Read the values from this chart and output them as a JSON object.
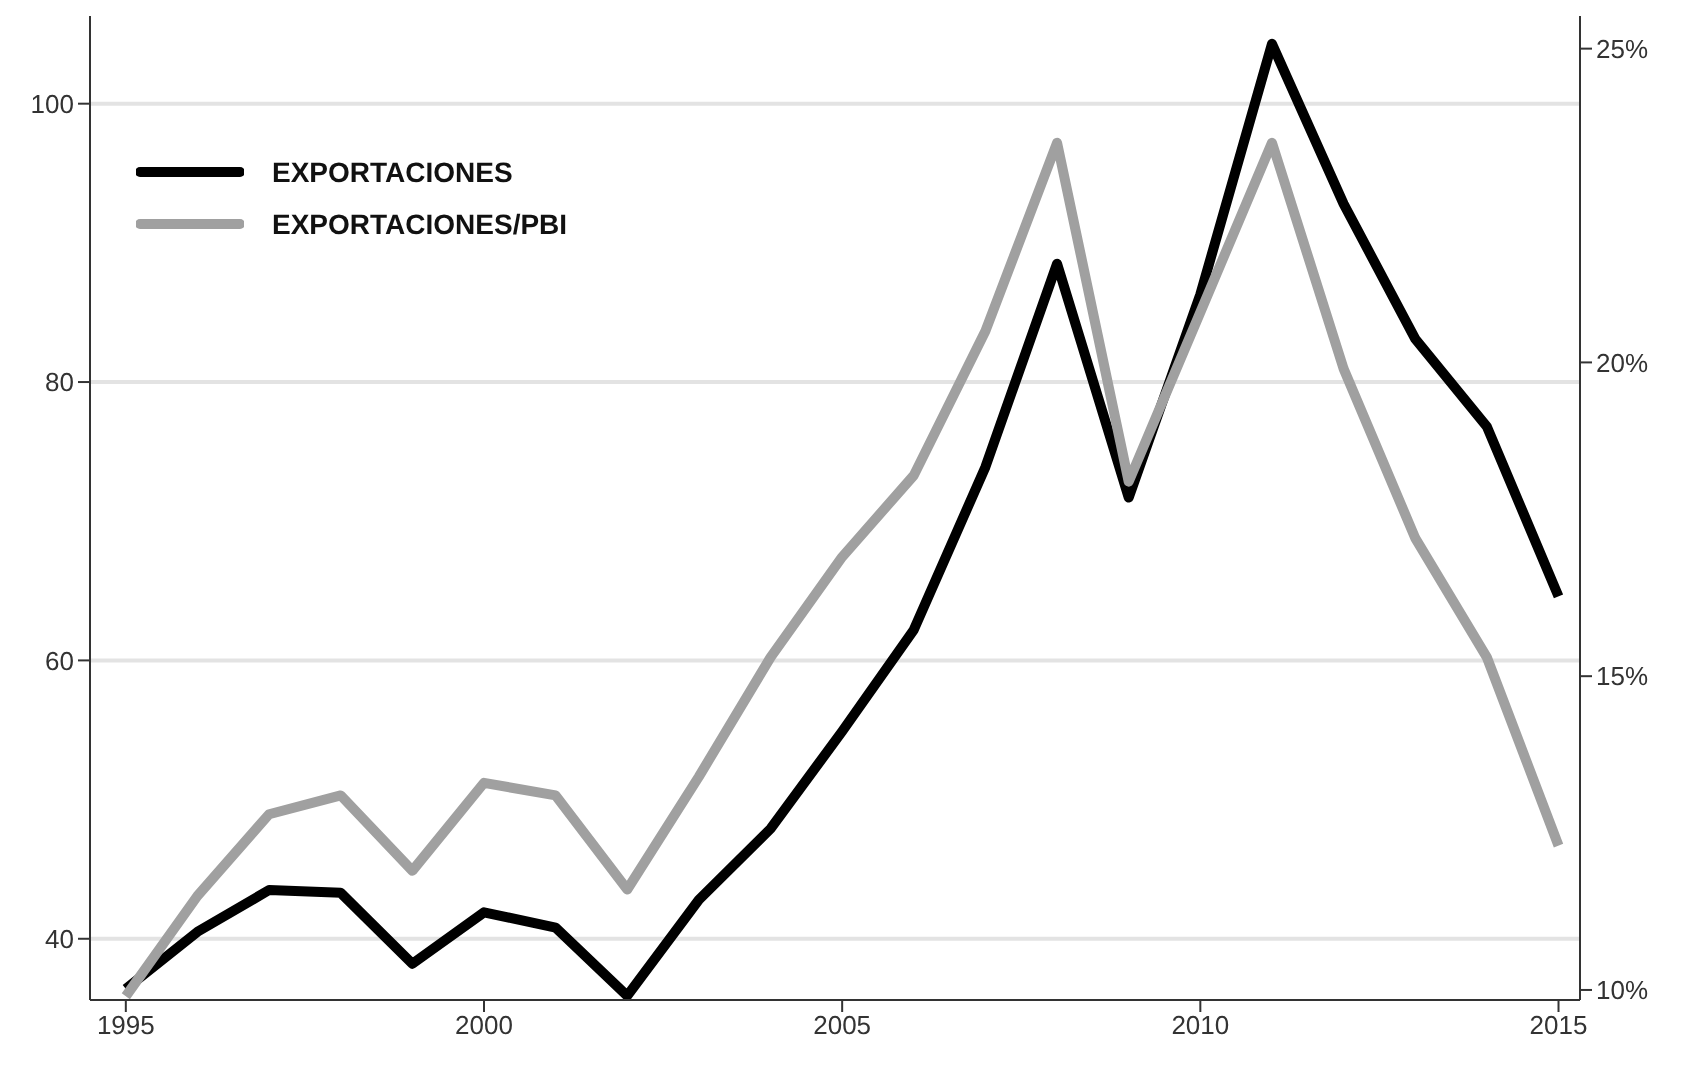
{
  "chart_data": {
    "type": "line",
    "x": [
      1995,
      1996,
      1997,
      1998,
      1999,
      2000,
      2001,
      2002,
      2003,
      2004,
      2005,
      2006,
      2007,
      2008,
      2009,
      2010,
      2011,
      2012,
      2013,
      2014,
      2015
    ],
    "series": [
      {
        "name": "EXPORTACIONES",
        "color": "#000000",
        "values": [
          36.4,
          40.5,
          43.5,
          43.3,
          38.2,
          41.9,
          40.8,
          35.9,
          42.8,
          47.9,
          54.9,
          62.2,
          73.9,
          88.5,
          71.7,
          86.3,
          104.3,
          92.8,
          83.1,
          76.8,
          64.6
        ]
      },
      {
        "name": "EXPORTACIONES/PBI",
        "color": "#a0a0a0",
        "axis": "y2",
        "values": [
          9.9,
          11.5,
          12.8,
          13.1,
          11.9,
          13.3,
          13.1,
          11.6,
          13.4,
          15.3,
          16.9,
          18.2,
          20.5,
          23.5,
          18.1,
          20.8,
          23.5,
          19.9,
          17.2,
          15.3,
          12.3
        ]
      }
    ],
    "xlim": [
      1994.5,
      2015.3
    ],
    "xticks": [
      1995,
      2000,
      2005,
      2010,
      2015
    ],
    "ylim": [
      35.6,
      106.3
    ],
    "yticks": [
      40,
      60,
      80,
      100
    ],
    "y2lim": [
      9.84,
      25.52
    ],
    "y2ticks": [
      {
        "value": 10,
        "label": "10%"
      },
      {
        "value": 15,
        "label": "15%"
      },
      {
        "value": 20,
        "label": "20%"
      },
      {
        "value": 25,
        "label": "25%"
      }
    ],
    "grid": "y",
    "legend": "top left",
    "marker": "none",
    "line_style": "solid"
  }
}
